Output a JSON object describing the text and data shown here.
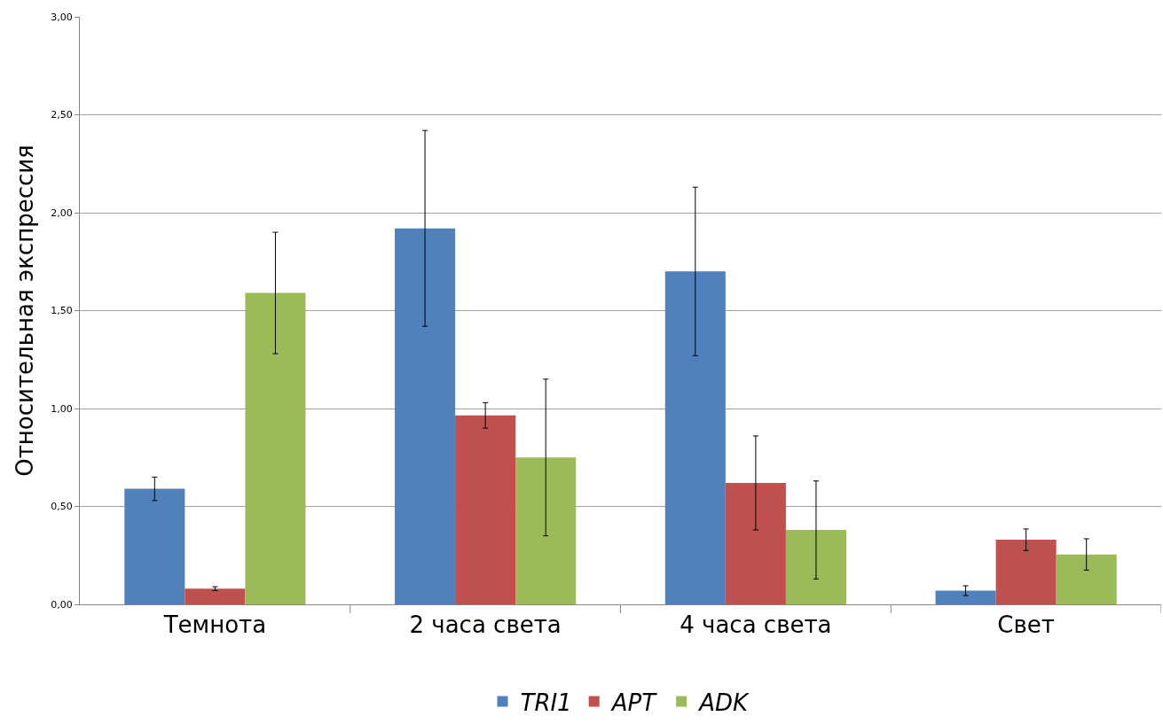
{
  "chart_data": {
    "type": "bar",
    "ylabel": "Относительная экспрессия",
    "categories": [
      "Темнота",
      "2 часа света",
      "4 часа света",
      "Свет"
    ],
    "series": [
      {
        "name": "TRI1",
        "color": "#4f81bd",
        "values": [
          0.59,
          1.92,
          1.7,
          0.07
        ],
        "errors": [
          0.06,
          0.5,
          0.43,
          0.025
        ]
      },
      {
        "name": "APT",
        "color": "#c0504d",
        "values": [
          0.08,
          0.965,
          0.62,
          0.33
        ],
        "errors": [
          0.01,
          0.065,
          0.24,
          0.055
        ]
      },
      {
        "name": "ADK",
        "color": "#9bbb59",
        "values": [
          1.59,
          0.75,
          0.38,
          0.255
        ],
        "errors": [
          0.31,
          0.4,
          0.25,
          0.08
        ]
      }
    ],
    "ylim": [
      0,
      3
    ],
    "yticks": [
      {
        "value": 0,
        "label": "0,00"
      },
      {
        "value": 0.5,
        "label": "0,50"
      },
      {
        "value": 1,
        "label": "1,00"
      },
      {
        "value": 1.5,
        "label": "1,50"
      },
      {
        "value": 2,
        "label": "2,00"
      },
      {
        "value": 2.5,
        "label": "2,50"
      },
      {
        "value": 3,
        "label": "3,00"
      }
    ],
    "grid": "y",
    "legend": "bottom"
  }
}
